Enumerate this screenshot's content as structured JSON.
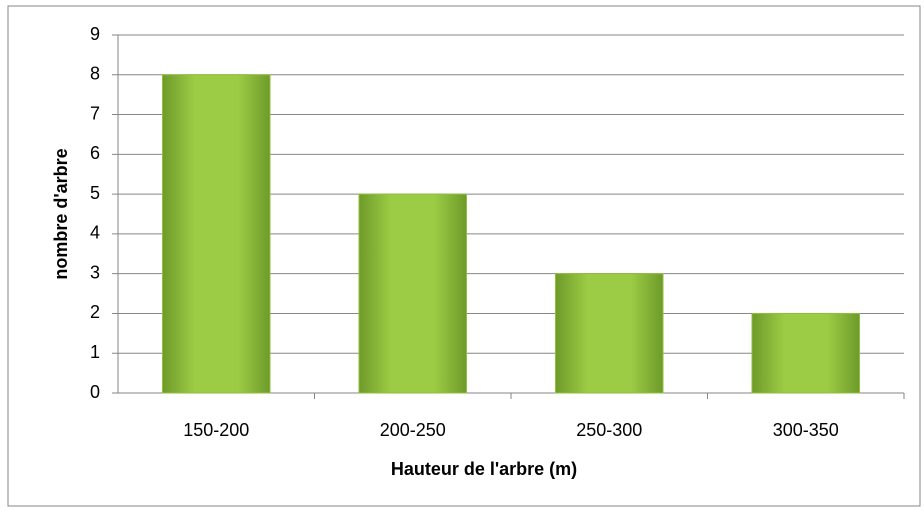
{
  "chart_data": {
    "type": "bar",
    "x_label": "Hauteur de l'arbre (m)",
    "y_label": "nombre d'arbre",
    "categories": [
      "150-200",
      "200-250",
      "250-300",
      "300-350"
    ],
    "values": [
      8,
      5,
      3,
      2
    ],
    "color": "#8fbf3a",
    "ylim": [
      0,
      9
    ],
    "yticks": [
      0,
      1,
      2,
      3,
      4,
      5,
      6,
      7,
      8,
      9
    ],
    "grid": true
  }
}
